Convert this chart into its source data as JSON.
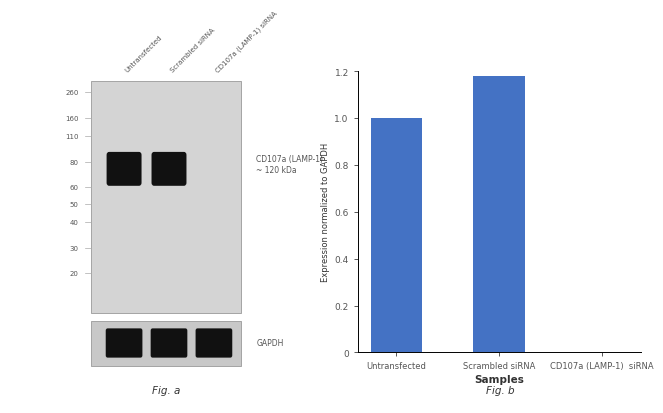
{
  "fig_width": 6.5,
  "fig_height": 3.75,
  "fig_background": "#ffffff",
  "wb_panel": {
    "gel_bg": "#d4d4d4",
    "gapdh_bg": "#c8c8c8",
    "band_color": "#111111",
    "col_labels": [
      "Untransfected",
      "Scrambled siRNA",
      "CD107a (LAMP-1) siRNA"
    ],
    "mw_markers": [
      260,
      160,
      110,
      80,
      60,
      50,
      40,
      30,
      20
    ],
    "label_cd107a": "CD107a (LAMP-1)\n~ 120 kDa",
    "label_gapdh": "GAPDH",
    "fig_label": "Fig. a"
  },
  "bar_panel": {
    "categories": [
      "Untransfected",
      "Scrambled siRNA",
      "CD107a (LAMP-1)  siRNA"
    ],
    "values": [
      1.0,
      1.18,
      0.0
    ],
    "bar_color": "#4472c4",
    "xlabel": "Samples",
    "ylabel": "Expression normalized to GAPDH",
    "ylim": [
      0,
      1.2
    ],
    "yticks": [
      0.0,
      0.2,
      0.4,
      0.6,
      0.8,
      1.0,
      1.2
    ],
    "fig_label": "Fig. b",
    "bar_width": 0.5
  }
}
